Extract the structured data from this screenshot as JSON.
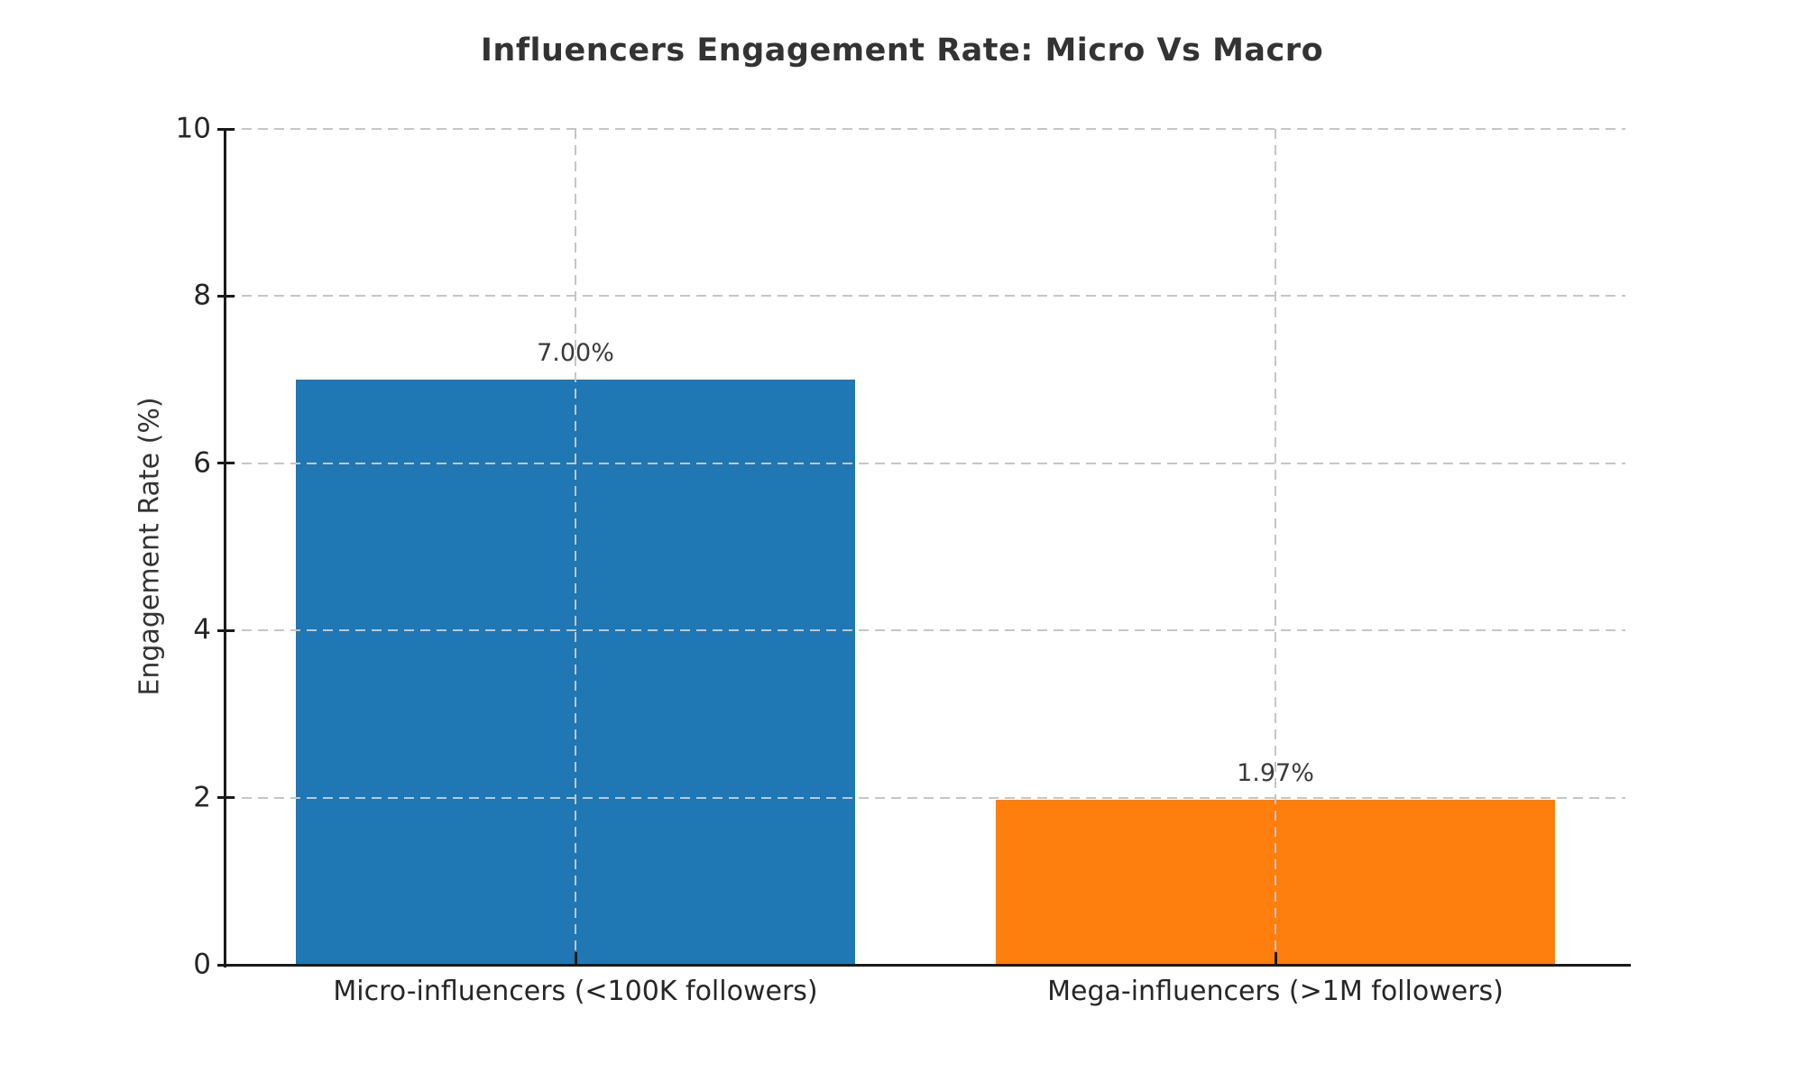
{
  "chart_data": {
    "type": "bar",
    "title": "Influencers Engagement Rate: Micro Vs Macro",
    "categories": [
      "Micro-influencers (<100K followers)",
      "Mega-influencers (>1M followers)"
    ],
    "values": [
      7.0,
      1.97
    ],
    "value_labels": [
      "7.00%",
      "1.97%"
    ],
    "series_names": [
      "micro-influencers-bar",
      "mega-influencers-bar"
    ],
    "bar_colors": [
      "#1f77b4",
      "#ff7f0e"
    ],
    "xlabel": "",
    "ylabel": "Engagement Rate (%)",
    "ylim": [
      0,
      10
    ],
    "yticks": [
      0,
      2,
      4,
      6,
      8,
      10
    ],
    "grid": "dashed",
    "grid_color": "#c6c6c6",
    "legend_position": "none",
    "spine_color": "#1a1a1a",
    "text_color": "#333333"
  }
}
